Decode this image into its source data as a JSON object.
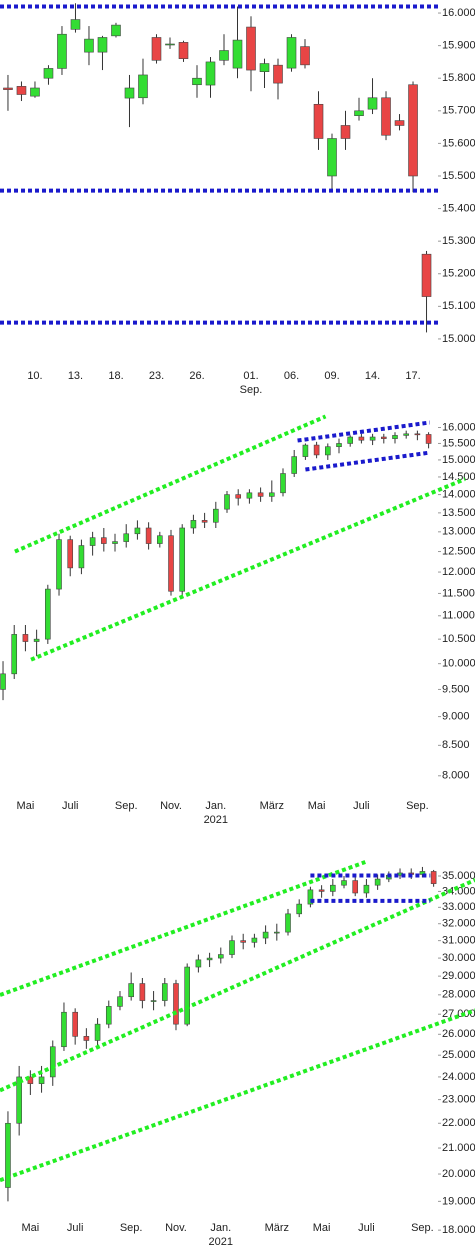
{
  "chart_data": [
    {
      "type": "candlestick",
      "log": false,
      "up_color": "#33dd33",
      "down_color": "#e84545",
      "categories": [
        null,
        null,
        "10.",
        null,
        null,
        "13.",
        null,
        null,
        "18.",
        null,
        null,
        "23.",
        null,
        null,
        "26.",
        null,
        null,
        null,
        "01.",
        null,
        null,
        "06.",
        null,
        null,
        "09.",
        null,
        null,
        "14.",
        null,
        null,
        "17.",
        null
      ],
      "x_sublabels": [
        {
          "index": 18,
          "label": "Sep."
        }
      ],
      "xlim": [
        -0.59,
        31.85
      ],
      "open": [
        15770,
        15775,
        15745,
        15800,
        15830,
        15950,
        15880,
        15880,
        15930,
        15739,
        15740,
        15925,
        15905,
        15910,
        15780,
        15779,
        15855,
        15831,
        15957,
        15820,
        15840,
        15831,
        15897,
        15720,
        15500,
        15655,
        15685,
        15705,
        15740,
        15670,
        15780,
        15260
      ],
      "high": [
        15810,
        15790,
        15790,
        15840,
        15960,
        16030,
        15960,
        15930,
        15970,
        15810,
        15860,
        15935,
        15925,
        15915,
        15840,
        15865,
        15935,
        16020,
        15990,
        15860,
        15860,
        15935,
        15920,
        15760,
        15630,
        15700,
        15740,
        15800,
        15760,
        15690,
        15790,
        15270
      ],
      "low": [
        15700,
        15730,
        15740,
        15780,
        15810,
        15940,
        15840,
        15825,
        15925,
        15650,
        15720,
        15845,
        15890,
        15850,
        15740,
        15740,
        15840,
        15800,
        15760,
        15770,
        15735,
        15820,
        15830,
        15580,
        15460,
        15580,
        15670,
        15690,
        15610,
        15640,
        15450,
        15020
      ],
      "close": [
        15765,
        15750,
        15770,
        15830,
        15935,
        15980,
        15920,
        15925,
        15963,
        15770,
        15810,
        15855,
        15905,
        15860,
        15800,
        15850,
        15885,
        15917,
        15825,
        15845,
        15785,
        15925,
        15841,
        15615,
        15615,
        15615,
        15700,
        15740,
        15625,
        15655,
        15500,
        15130
      ],
      "ylim": [
        14920,
        16040
      ],
      "yticks": [
        {
          "value": 16000,
          "label": "16.000"
        },
        {
          "value": 15900,
          "label": "15.900"
        },
        {
          "value": 15800,
          "label": "15.800"
        },
        {
          "value": 15700,
          "label": "15.700"
        },
        {
          "value": 15600,
          "label": "15.600"
        },
        {
          "value": 15500,
          "label": "15.500"
        },
        {
          "value": 15400,
          "label": "15.400"
        },
        {
          "value": 15300,
          "label": "15.300"
        },
        {
          "value": 15200,
          "label": "15.200"
        },
        {
          "value": 15100,
          "label": "15.100"
        },
        {
          "value": 15000,
          "label": "15.000"
        }
      ],
      "lines": [
        {
          "color": "#1a1acc",
          "x": [
            -0.59,
            31.85
          ],
          "y": [
            16020,
            16020
          ]
        },
        {
          "color": "#1a1acc",
          "x": [
            -0.59,
            31.85
          ],
          "y": [
            15455,
            15455
          ]
        },
        {
          "color": "#1a1acc",
          "x": [
            -0.59,
            31.85
          ],
          "y": [
            15050,
            15050
          ]
        }
      ]
    },
    {
      "type": "candlestick",
      "log": true,
      "up_color": "#33dd33",
      "down_color": "#e84545",
      "categories": [
        null,
        null,
        "Mai",
        null,
        null,
        null,
        "Juli",
        null,
        null,
        null,
        null,
        "Sep.",
        null,
        null,
        null,
        "Nov.",
        null,
        null,
        null,
        "Jan.",
        null,
        null,
        null,
        null,
        "März",
        null,
        null,
        null,
        "Mai",
        null,
        null,
        null,
        "Juli",
        null,
        null,
        null,
        null,
        "Sep.",
        null
      ],
      "x_sublabels": [
        {
          "index": 19,
          "label": "2021"
        }
      ],
      "xlim": [
        -0.27,
        38.84
      ],
      "open": [
        9500,
        9800,
        10600,
        10450,
        10500,
        11600,
        12800,
        12100,
        12650,
        12850,
        12700,
        12750,
        12950,
        13100,
        12700,
        12900,
        11550,
        13100,
        13300,
        13250,
        13600,
        14000,
        13900,
        14050,
        13950,
        14050,
        14600,
        15100,
        15450,
        15150,
        15400,
        15500,
        15700,
        15600,
        15700,
        15650,
        15750,
        15800,
        15780
      ],
      "high": [
        10050,
        10800,
        10800,
        10700,
        11700,
        12950,
        12900,
        12800,
        13000,
        13100,
        12950,
        13200,
        13300,
        13250,
        13000,
        13050,
        13200,
        13450,
        13500,
        13800,
        14100,
        14150,
        14150,
        14200,
        14400,
        14750,
        15300,
        15500,
        15550,
        15500,
        15650,
        15750,
        15800,
        15800,
        15800,
        15850,
        15900,
        15900,
        15850
      ],
      "low": [
        9300,
        9700,
        10250,
        10150,
        10400,
        11450,
        11900,
        11950,
        12400,
        12500,
        12500,
        12600,
        12800,
        12550,
        12600,
        11450,
        11450,
        12950,
        13100,
        13100,
        13500,
        13700,
        13750,
        13800,
        13800,
        13950,
        14500,
        15000,
        15050,
        15000,
        15200,
        15400,
        15500,
        15450,
        15500,
        15500,
        15650,
        15600,
        15350
      ],
      "close": [
        9800,
        10600,
        10450,
        10500,
        11600,
        12800,
        12100,
        12650,
        12850,
        12700,
        12750,
        12950,
        13100,
        12700,
        12900,
        11550,
        13100,
        13300,
        13250,
        13600,
        14000,
        13900,
        14050,
        13950,
        14050,
        14600,
        15100,
        15450,
        15150,
        15400,
        15500,
        15700,
        15600,
        15700,
        15650,
        15750,
        15800,
        15780,
        15500
      ],
      "ylim": [
        7700,
        16900
      ],
      "yticks": [
        {
          "value": 16000,
          "label": "16.000"
        },
        {
          "value": 15500,
          "label": "15.500"
        },
        {
          "value": 15000,
          "label": "15.000"
        },
        {
          "value": 14500,
          "label": "14.500"
        },
        {
          "value": 14000,
          "label": "14.000"
        },
        {
          "value": 13500,
          "label": "13.500"
        },
        {
          "value": 13000,
          "label": "13.000"
        },
        {
          "value": 12500,
          "label": "12.500"
        },
        {
          "value": 12000,
          "label": "12.000"
        },
        {
          "value": 11500,
          "label": "11.500"
        },
        {
          "value": 11000,
          "label": "11.000"
        },
        {
          "value": 10500,
          "label": "10.500"
        },
        {
          "value": 10000,
          "label": "10.000"
        },
        {
          "value": 9500,
          "label": "9.500"
        },
        {
          "value": 9000,
          "label": "9.000"
        },
        {
          "value": 8500,
          "label": "8.500"
        },
        {
          "value": 8000,
          "label": "8.000"
        }
      ],
      "lines": [
        {
          "color": "#22ee22",
          "x": [
            1.06,
            28.8
          ],
          "y": [
            12500,
            16355
          ]
        },
        {
          "color": "#22ee22",
          "x": [
            2.5,
            41.25
          ],
          "y": [
            10080,
            14440
          ]
        },
        {
          "color": "#1a1acc",
          "x": [
            26.3,
            38.1
          ],
          "y": [
            15590,
            16160
          ]
        },
        {
          "color": "#1a1acc",
          "x": [
            27,
            38.1
          ],
          "y": [
            14716,
            15220
          ]
        }
      ]
    },
    {
      "type": "candlestick",
      "log": true,
      "up_color": "#33dd33",
      "down_color": "#e84545",
      "categories": [
        null,
        null,
        "Mai",
        null,
        null,
        null,
        "Juli",
        null,
        null,
        null,
        null,
        "Sep.",
        null,
        null,
        null,
        "Nov.",
        null,
        null,
        null,
        "Jan.",
        null,
        null,
        null,
        null,
        "März",
        null,
        null,
        null,
        "Mai",
        null,
        null,
        null,
        "Juli",
        null,
        null,
        null,
        null,
        "Sep.",
        null
      ],
      "x_sublabels": [
        {
          "index": 19,
          "label": "2021"
        }
      ],
      "xlim": [
        -0.71,
        38.39
      ],
      "open": [
        19500,
        22000,
        24000,
        23700,
        24000,
        25400,
        27100,
        25900,
        25700,
        26500,
        27400,
        27900,
        28600,
        27700,
        27700,
        28600,
        26500,
        29500,
        29900,
        30000,
        30200,
        31000,
        30900,
        31150,
        31500,
        31500,
        32600,
        33200,
        34100,
        34000,
        34400,
        34700,
        33900,
        34400,
        34800,
        35050,
        35200,
        35100,
        35300
      ],
      "high": [
        22500,
        24500,
        24300,
        24500,
        25700,
        27600,
        27300,
        26300,
        26800,
        27700,
        28200,
        29200,
        28900,
        28200,
        28900,
        28800,
        29700,
        30200,
        30300,
        30600,
        31300,
        31400,
        31400,
        31900,
        32000,
        32900,
        33500,
        34300,
        34400,
        34800,
        35000,
        34900,
        34800,
        35100,
        35300,
        35500,
        35500,
        35600,
        35400
      ],
      "low": [
        19000,
        21500,
        23200,
        23300,
        23600,
        25200,
        25500,
        25300,
        25400,
        26300,
        27200,
        27700,
        27300,
        27200,
        27400,
        26200,
        26400,
        29200,
        29500,
        29700,
        30000,
        30500,
        30600,
        30800,
        31000,
        31300,
        32400,
        33000,
        33600,
        33700,
        34200,
        33700,
        33600,
        34100,
        34600,
        34800,
        34800,
        34900,
        34300
      ],
      "close": [
        22000,
        24000,
        23700,
        24000,
        25400,
        27100,
        25900,
        25700,
        26500,
        27400,
        27900,
        28600,
        27700,
        27700,
        28600,
        26500,
        29500,
        29900,
        30000,
        30200,
        31000,
        30900,
        31150,
        31500,
        31500,
        32600,
        33200,
        34100,
        34000,
        34400,
        34700,
        33900,
        34400,
        34800,
        35050,
        35200,
        35100,
        35300,
        34500
      ],
      "ylim": [
        17670,
        37800
      ],
      "yticks": [
        {
          "value": 35000,
          "label": "35.000"
        },
        {
          "value": 34000,
          "label": "34.000"
        },
        {
          "value": 33000,
          "label": "33.000"
        },
        {
          "value": 32000,
          "label": "32.000"
        },
        {
          "value": 31000,
          "label": "31.000"
        },
        {
          "value": 30000,
          "label": "30.000"
        },
        {
          "value": 29000,
          "label": "29.000"
        },
        {
          "value": 28000,
          "label": "28.000"
        },
        {
          "value": 27000,
          "label": "27.000"
        },
        {
          "value": 26000,
          "label": "26.000"
        },
        {
          "value": 25000,
          "label": "25.000"
        },
        {
          "value": 24000,
          "label": "24.000"
        },
        {
          "value": 23000,
          "label": "23.000"
        },
        {
          "value": 22000,
          "label": "22.000"
        },
        {
          "value": 21000,
          "label": "21.000"
        },
        {
          "value": 20000,
          "label": "20.000"
        },
        {
          "value": 19000,
          "label": "19.000"
        },
        {
          "value": 18000,
          "label": "18.000"
        }
      ],
      "lines": [
        {
          "color": "#22ee22",
          "x": [
            -0.71,
            31.9
          ],
          "y": [
            27990,
            35930
          ]
        },
        {
          "color": "#22ee22",
          "x": [
            -0.71,
            41.7
          ],
          "y": [
            23400,
            34740
          ]
        },
        {
          "color": "#22ee22",
          "x": [
            -0.71,
            41.7
          ],
          "y": [
            19770,
            27200
          ]
        },
        {
          "color": "#1a1acc",
          "x": [
            27,
            37.7
          ],
          "y": [
            35030,
            35030
          ]
        },
        {
          "color": "#1a1acc",
          "x": [
            27,
            37.7
          ],
          "y": [
            33400,
            33400
          ]
        }
      ]
    }
  ]
}
